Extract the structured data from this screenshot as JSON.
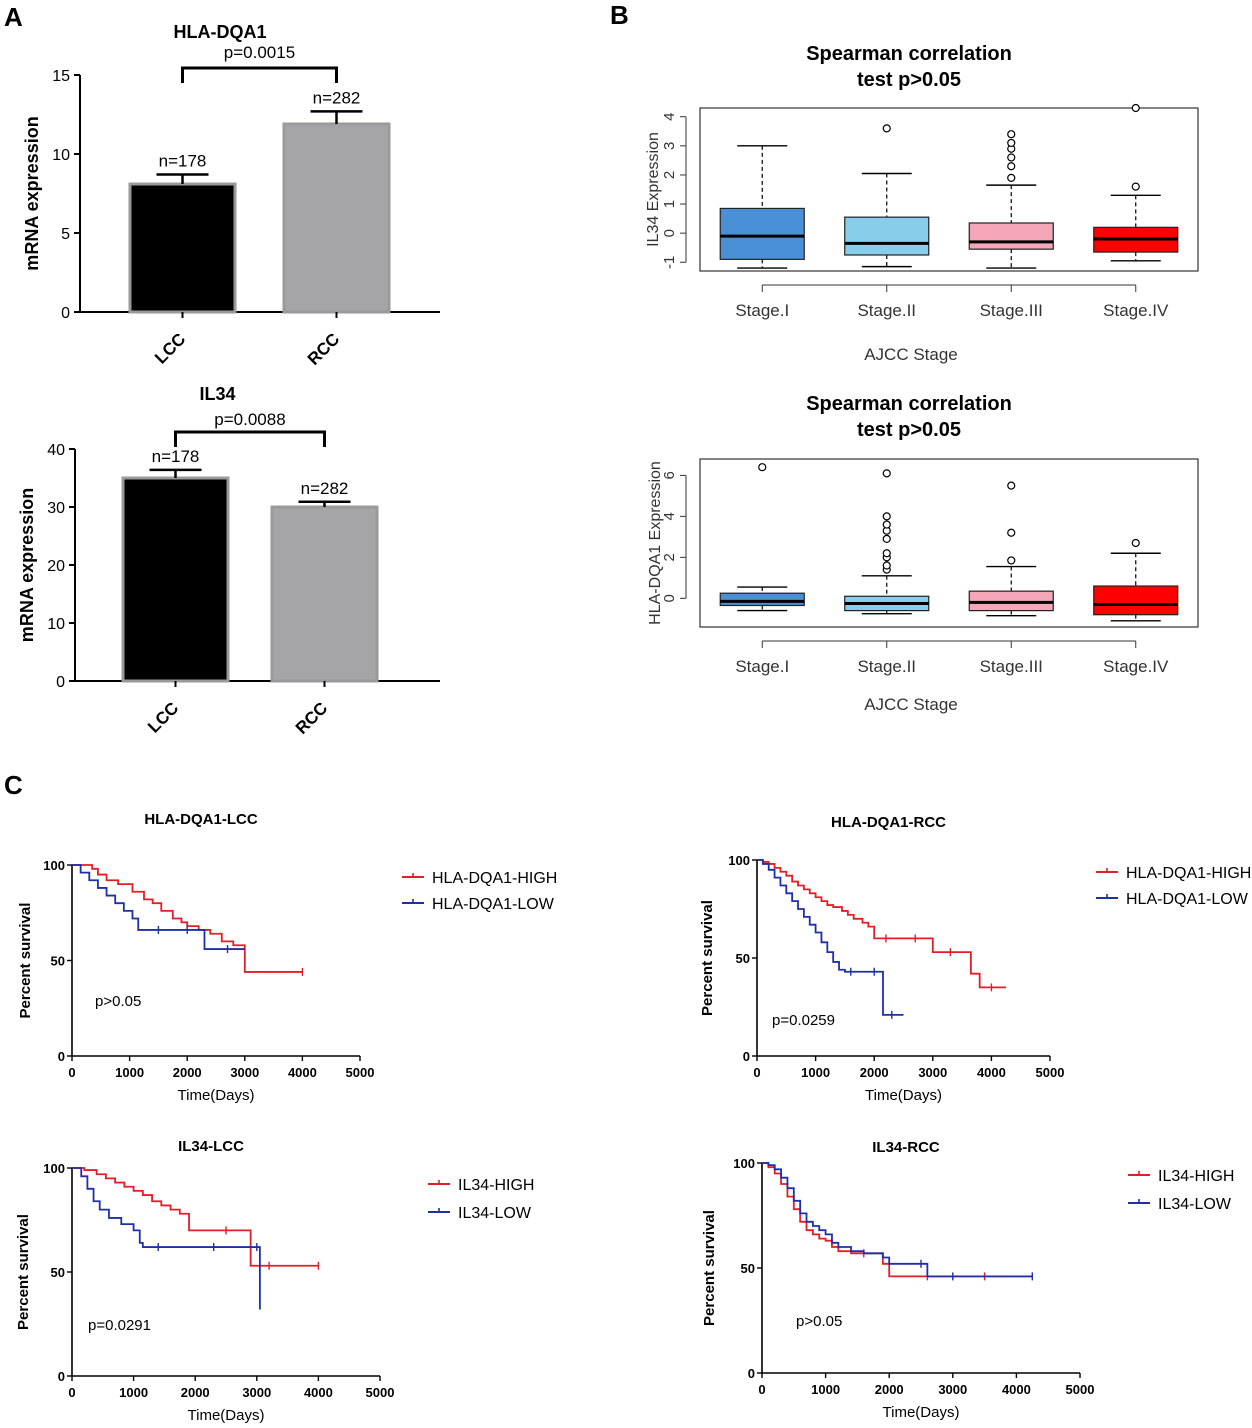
{
  "panels": {
    "a": "A",
    "b": "B",
    "c": "C"
  },
  "chart_data": [
    {
      "id": "A1",
      "type": "bar",
      "title": "HLA-DQA1",
      "ylabel": "mRNA expression",
      "xlabel": "",
      "categories": [
        "LCC",
        "RCC"
      ],
      "values": [
        8.1,
        11.9
      ],
      "errors": [
        0.6,
        0.8
      ],
      "counts": [
        "n=178",
        "n=282"
      ],
      "colors": [
        "#000000",
        "#a5a5a8"
      ],
      "ylim": [
        0,
        15
      ],
      "yticks": [
        "0",
        "5",
        "10",
        "15"
      ],
      "pvalue": "p=0.0015"
    },
    {
      "id": "A2",
      "type": "bar",
      "title": "IL34",
      "ylabel": "mRNA expression",
      "xlabel": "",
      "categories": [
        "LCC",
        "RCC"
      ],
      "values": [
        35,
        30
      ],
      "errors": [
        1.4,
        0.9
      ],
      "counts": [
        "n=178",
        "n=282"
      ],
      "colors": [
        "#000000",
        "#a5a5a8"
      ],
      "ylim": [
        0,
        40
      ],
      "yticks": [
        "0",
        "10",
        "20",
        "30",
        "40"
      ],
      "pvalue": "p=0.0088"
    },
    {
      "id": "B1",
      "type": "box",
      "title": [
        "Spearman correlation",
        "test p>0.05"
      ],
      "xlabel": "AJCC Stage",
      "ylabel": "IL34 Expression",
      "categories": [
        "Stage.I",
        "Stage.II",
        "Stage.III",
        "Stage.IV"
      ],
      "colors": [
        "#4a90d6",
        "#87ceeb",
        "#f4a7b9",
        "#ff0000"
      ],
      "ylim": [
        -1.3,
        4.3
      ],
      "yticks": [
        "-1",
        "0",
        "1",
        "2",
        "3",
        "4"
      ],
      "boxes": [
        {
          "q1": -0.9,
          "med": -0.1,
          "q3": 0.85,
          "lo": -1.2,
          "hi": 3.0,
          "out": []
        },
        {
          "q1": -0.75,
          "med": -0.35,
          "q3": 0.55,
          "lo": -1.15,
          "hi": 2.05,
          "out": [
            3.6
          ]
        },
        {
          "q1": -0.55,
          "med": -0.3,
          "q3": 0.35,
          "lo": -1.2,
          "hi": 1.65,
          "out": [
            1.9,
            2.3,
            2.6,
            2.9,
            3.1,
            3.4
          ]
        },
        {
          "q1": -0.65,
          "med": -0.2,
          "q3": 0.2,
          "lo": -0.95,
          "hi": 1.3,
          "out": [
            1.6,
            4.3
          ]
        }
      ]
    },
    {
      "id": "B2",
      "type": "box",
      "title": [
        "Spearman correlation",
        "test p>0.05"
      ],
      "xlabel": "AJCC Stage",
      "ylabel": "HLA-DQA1 Expression",
      "categories": [
        "Stage.I",
        "Stage.II",
        "Stage.III",
        "Stage.IV"
      ],
      "colors": [
        "#4a90d6",
        "#87ceeb",
        "#f4a7b9",
        "#ff0000"
      ],
      "ylim": [
        -1.4,
        6.8
      ],
      "yticks": [
        "0",
        "2",
        "4",
        "6"
      ],
      "boxes": [
        {
          "q1": -0.35,
          "med": -0.15,
          "q3": 0.25,
          "lo": -0.6,
          "hi": 0.55,
          "out": [
            6.4
          ]
        },
        {
          "q1": -0.6,
          "med": -0.25,
          "q3": 0.1,
          "lo": -0.75,
          "hi": 1.1,
          "out": [
            1.4,
            1.6,
            2.0,
            2.2,
            2.9,
            3.3,
            3.6,
            4.0,
            6.1
          ]
        },
        {
          "q1": -0.6,
          "med": -0.2,
          "q3": 0.35,
          "lo": -0.85,
          "hi": 1.55,
          "out": [
            1.85,
            3.2,
            5.5
          ]
        },
        {
          "q1": -0.8,
          "med": -0.3,
          "q3": 0.6,
          "lo": -1.1,
          "hi": 2.2,
          "out": [
            2.7
          ]
        }
      ]
    },
    {
      "id": "C1",
      "type": "line",
      "title": "HLA-DQA1-LCC",
      "xlabel": "Time(Days)",
      "ylabel": "Percent survival",
      "xlim": [
        0,
        5000
      ],
      "ylim": [
        0,
        100
      ],
      "xticks": [
        "0",
        "1000",
        "2000",
        "3000",
        "4000",
        "5000"
      ],
      "yticks": [
        "0",
        "50",
        "100"
      ],
      "annotation": "p>0.05",
      "series": [
        {
          "name": "HLA-DQA1-HIGH",
          "color": "#e31e24",
          "x": [
            0,
            200,
            350,
            450,
            600,
            800,
            1050,
            1250,
            1400,
            1550,
            1750,
            1900,
            2000,
            2200,
            2400,
            2600,
            2800,
            2900,
            3000,
            3500,
            4000
          ],
          "y": [
            100,
            100,
            98,
            95,
            92,
            90,
            86,
            82,
            80,
            76,
            72,
            70,
            68,
            66,
            64,
            60,
            58,
            58,
            44,
            44,
            44
          ]
        },
        {
          "name": "HLA-DQA1-LOW",
          "color": "#1f2fa8",
          "x": [
            0,
            150,
            300,
            450,
            600,
            750,
            900,
            1050,
            1150,
            1250,
            1500,
            1800,
            2000,
            2200,
            2300,
            2450,
            2700,
            3000
          ],
          "y": [
            100,
            96,
            92,
            88,
            84,
            80,
            76,
            72,
            66,
            66,
            66,
            66,
            66,
            66,
            56,
            56,
            56,
            56
          ]
        }
      ]
    },
    {
      "id": "C2",
      "type": "line",
      "title": "HLA-DQA1-RCC",
      "xlabel": "Time(Days)",
      "ylabel": "Percent survival",
      "xlim": [
        0,
        5000
      ],
      "ylim": [
        0,
        100
      ],
      "xticks": [
        "0",
        "1000",
        "2000",
        "3000",
        "4000",
        "5000"
      ],
      "yticks": [
        "0",
        "50",
        "100"
      ],
      "annotation": "p=0.0259",
      "series": [
        {
          "name": "HLA-DQA1-HIGH",
          "color": "#e31e24",
          "x": [
            0,
            100,
            200,
            300,
            400,
            500,
            600,
            700,
            800,
            900,
            1000,
            1100,
            1200,
            1300,
            1450,
            1550,
            1650,
            1800,
            1900,
            2000,
            2200,
            2400,
            2700,
            3000,
            3300,
            3550,
            3650,
            3800,
            4000,
            4250
          ],
          "y": [
            100,
            99,
            98,
            96,
            94,
            92,
            89,
            87,
            85,
            83,
            81,
            79,
            77,
            76,
            74,
            72,
            70,
            68,
            66,
            60,
            60,
            60,
            60,
            53,
            53,
            53,
            42,
            35,
            35,
            35
          ]
        },
        {
          "name": "HLA-DQA1-LOW",
          "color": "#1f2fa8",
          "x": [
            0,
            100,
            200,
            300,
            400,
            500,
            600,
            700,
            800,
            900,
            1000,
            1100,
            1200,
            1300,
            1400,
            1500,
            1600,
            1800,
            2000,
            2150,
            2300,
            2500
          ],
          "y": [
            100,
            98,
            95,
            91,
            87,
            83,
            79,
            75,
            71,
            67,
            63,
            58,
            53,
            48,
            44,
            43,
            43,
            43,
            43,
            21,
            21,
            21
          ]
        }
      ]
    },
    {
      "id": "C3",
      "type": "line",
      "title": "IL34-LCC",
      "xlabel": "Time(Days)",
      "ylabel": "Percent survival",
      "xlim": [
        0,
        5000
      ],
      "ylim": [
        0,
        100
      ],
      "xticks": [
        "0",
        "1000",
        "2000",
        "3000",
        "4000",
        "5000"
      ],
      "yticks": [
        "0",
        "50",
        "100"
      ],
      "annotation": "p=0.0291",
      "series": [
        {
          "name": "IL34-HIGH",
          "color": "#e31e24",
          "x": [
            0,
            200,
            400,
            550,
            700,
            850,
            1000,
            1150,
            1300,
            1450,
            1600,
            1750,
            1900,
            2100,
            2500,
            2900,
            3200,
            3600,
            4000
          ],
          "y": [
            100,
            99,
            97,
            95,
            93,
            91,
            89,
            87,
            84,
            82,
            80,
            78,
            70,
            70,
            70,
            53,
            53,
            53,
            53
          ]
        },
        {
          "name": "IL34-LOW",
          "color": "#1f2fa8",
          "x": [
            0,
            150,
            250,
            350,
            450,
            600,
            800,
            1000,
            1100,
            1150,
            1400,
            1800,
            2300,
            2700,
            3000,
            3050
          ],
          "y": [
            100,
            96,
            90,
            84,
            80,
            76,
            73,
            70,
            64,
            62,
            62,
            62,
            62,
            62,
            62,
            32
          ]
        }
      ]
    },
    {
      "id": "C4",
      "type": "line",
      "title": "IL34-RCC",
      "xlabel": "Time(Days)",
      "ylabel": "Percent survival",
      "xlim": [
        0,
        5000
      ],
      "ylim": [
        0,
        100
      ],
      "xticks": [
        "0",
        "1000",
        "2000",
        "3000",
        "4000",
        "5000"
      ],
      "yticks": [
        "0",
        "50",
        "100"
      ],
      "annotation": "p>0.05",
      "series": [
        {
          "name": "IL34-HIGH",
          "color": "#e31e24",
          "x": [
            0,
            100,
            200,
            300,
            400,
            500,
            600,
            700,
            800,
            900,
            1000,
            1100,
            1200,
            1400,
            1600,
            1900,
            2000,
            2200,
            2600,
            3000,
            3500,
            4250
          ],
          "y": [
            100,
            98,
            95,
            90,
            84,
            78,
            72,
            68,
            66,
            64,
            63,
            60,
            58,
            57,
            57,
            52,
            46,
            46,
            46,
            46,
            46,
            46
          ]
        },
        {
          "name": "IL34-LOW",
          "color": "#1f2fa8",
          "x": [
            0,
            100,
            200,
            300,
            400,
            500,
            600,
            700,
            800,
            900,
            1000,
            1100,
            1200,
            1400,
            1600,
            1900,
            2000,
            2200,
            2500,
            2600,
            3000,
            3500,
            4250
          ],
          "y": [
            100,
            99,
            97,
            93,
            88,
            82,
            76,
            72,
            70,
            68,
            66,
            62,
            60,
            58,
            57,
            55,
            52,
            52,
            52,
            46,
            46,
            46,
            46
          ]
        }
      ]
    }
  ]
}
